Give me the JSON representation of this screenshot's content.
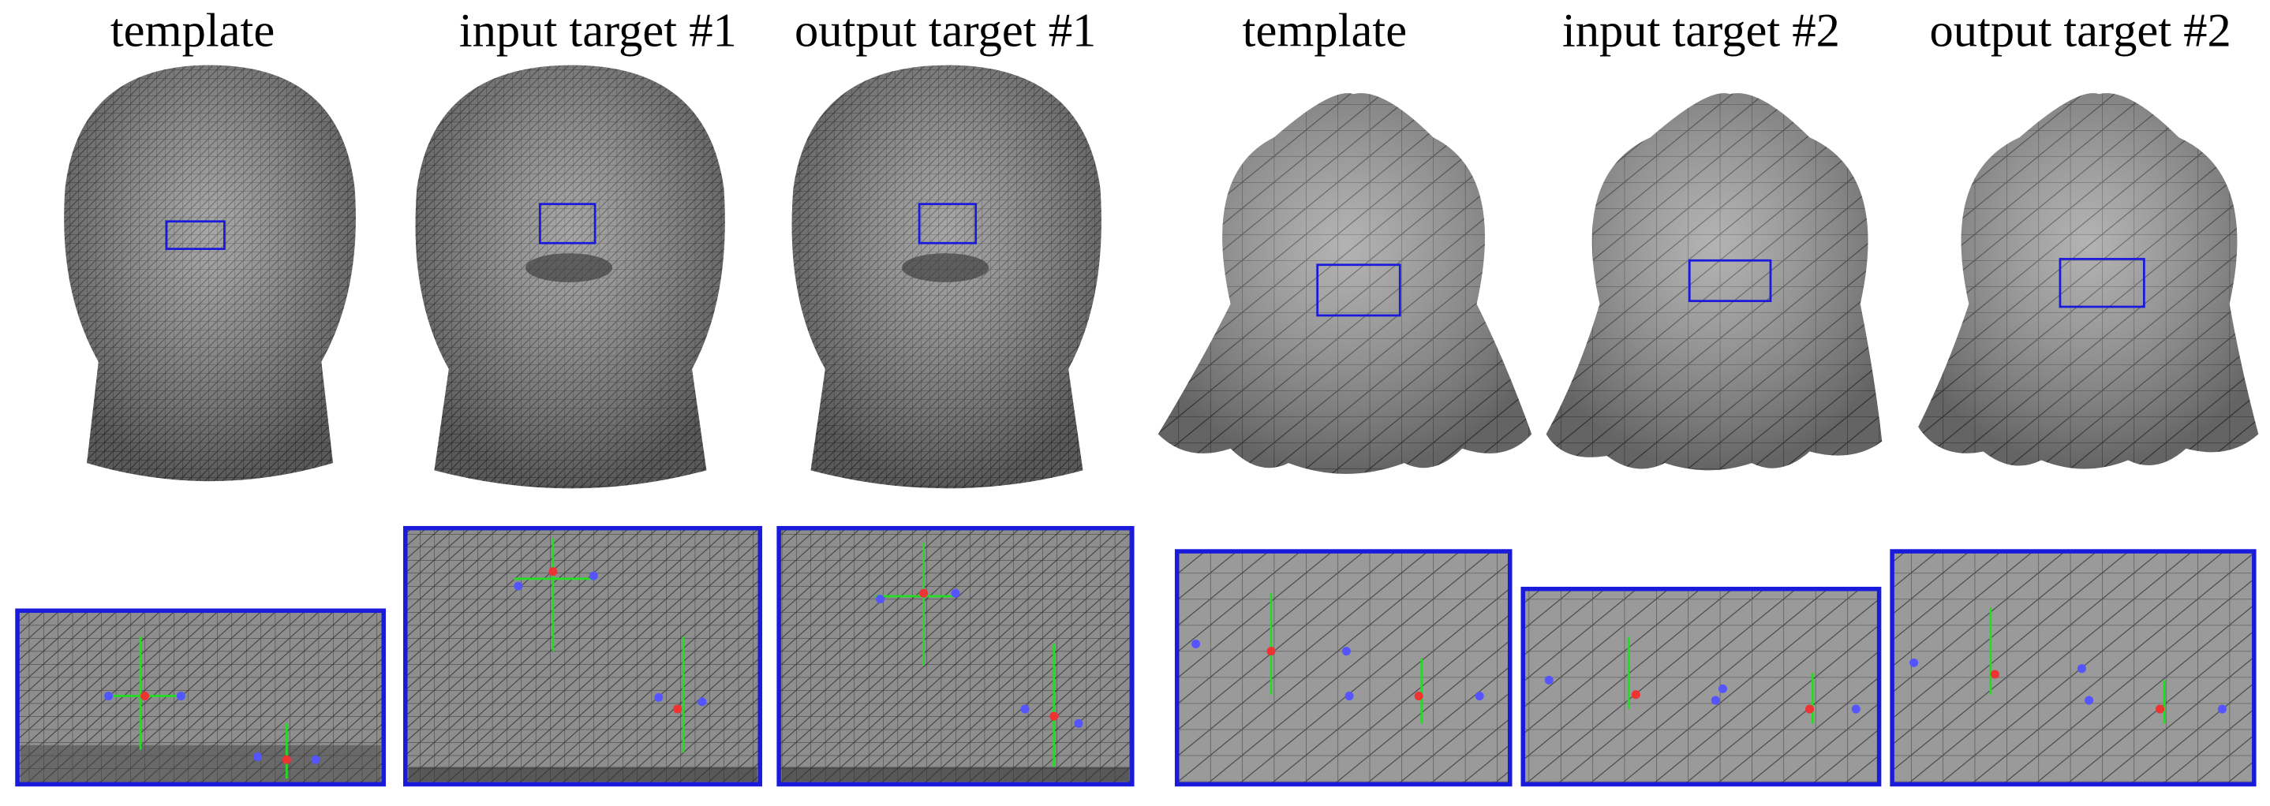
{
  "panels": [
    {
      "title": "template"
    },
    {
      "title": "input target #1"
    },
    {
      "title": "output target #1"
    },
    {
      "title": "template"
    },
    {
      "title": "input target #2"
    },
    {
      "title": "output target #2"
    }
  ]
}
